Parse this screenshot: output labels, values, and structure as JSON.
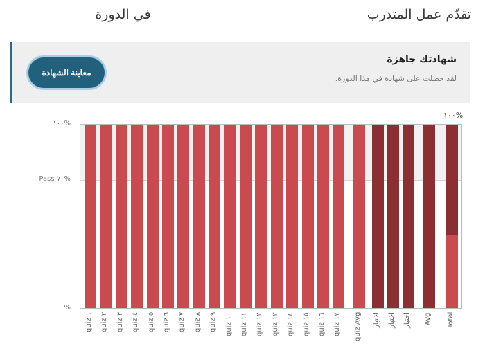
{
  "header": {
    "title_prefix": "تقدّم عمل المتدرب",
    "title_suffix": "في الدورة"
  },
  "certificate": {
    "title": "شهادتك جاهزة",
    "subtitle": "لقد حصلت على شهادة في هذا الدورة.",
    "button_label": "معاينة الشهادة",
    "button_color": "#22607c",
    "border_color": "#2a6c86"
  },
  "chart_data": {
    "type": "bar",
    "title": "",
    "xlabel": "",
    "ylabel": "",
    "ylim": [
      0,
      100
    ],
    "y_ticks": [
      {
        "label": "١٠٠%",
        "value": 100
      },
      {
        "label": "Pass ٧٠%",
        "value": 70
      },
      {
        "label": "%",
        "value": 0
      }
    ],
    "pass_threshold": 70,
    "total_label": "١٠٠%",
    "colors": {
      "quiz": "#c94b4f",
      "test": "#8b2f33",
      "pass_zone": "#f1f1f1"
    },
    "categories": [
      "quiz ١",
      "quiz ٢",
      "quiz ٣",
      "quiz ٤",
      "quiz ٥",
      "quiz ٦",
      "quiz ٧",
      "quiz ٨",
      "quiz ٩",
      "quiz ١٠",
      "quiz ١١",
      "quiz ١٢",
      "quiz ١٣",
      "quiz ١٤",
      "quiz ١٥",
      "quiz ١٦",
      "quiz ١٧",
      "quiz Avg",
      "اختبار",
      "اختبار",
      "اختبار",
      "Avg",
      "Total"
    ],
    "values": [
      100,
      100,
      100,
      100,
      100,
      100,
      100,
      100,
      100,
      100,
      100,
      100,
      100,
      100,
      100,
      100,
      100,
      100,
      100,
      100,
      100,
      100,
      100
    ],
    "total_breakdown": {
      "quiz_part": 50,
      "test_part": 50
    }
  }
}
